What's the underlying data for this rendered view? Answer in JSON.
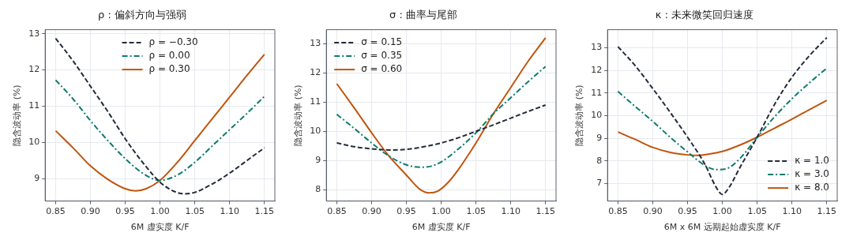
{
  "chart_data": [
    {
      "type": "line",
      "title": "ρ : 偏斜方向与强弱",
      "xlabel": "6M 虚实度 K/F",
      "ylabel": "隐含波动率 (%)",
      "xlim": [
        0.835,
        1.165
      ],
      "ylim": [
        8.38,
        13.11
      ],
      "xticks": [
        {
          "value": 0.85,
          "label": "0.85"
        },
        {
          "value": 0.9,
          "label": "0.90"
        },
        {
          "value": 0.95,
          "label": "0.95"
        },
        {
          "value": 1.0,
          "label": "1.00"
        },
        {
          "value": 1.05,
          "label": "1.05"
        },
        {
          "value": 1.1,
          "label": "1.10"
        },
        {
          "value": 1.15,
          "label": "1.15"
        }
      ],
      "yticks": [
        9,
        10,
        11,
        12,
        13
      ],
      "grid": true,
      "legend": "top center",
      "series": [
        {
          "name": "ρ = −0.30",
          "color": "#232b3a",
          "line_style": "dashed",
          "x": [
            0.85,
            0.875,
            0.9,
            0.925,
            0.95,
            0.975,
            1.0,
            1.02,
            1.035,
            1.05,
            1.075,
            1.1,
            1.125,
            1.15
          ],
          "values": [
            12.87,
            12.25,
            11.55,
            10.85,
            10.1,
            9.45,
            8.9,
            8.65,
            8.58,
            8.62,
            8.85,
            9.15,
            9.5,
            9.85
          ]
        },
        {
          "name": "ρ = 0.00",
          "color": "#0f7b6c",
          "line_style": "dashdot",
          "x": [
            0.85,
            0.875,
            0.9,
            0.925,
            0.95,
            0.975,
            1.0,
            1.025,
            1.05,
            1.075,
            1.1,
            1.125,
            1.15
          ],
          "values": [
            11.72,
            11.2,
            10.6,
            10.05,
            9.55,
            9.15,
            8.95,
            9.1,
            9.45,
            9.9,
            10.35,
            10.8,
            11.27
          ]
        },
        {
          "name": "ρ = 0.30",
          "color": "#c0550f",
          "line_style": "solid",
          "x": [
            0.85,
            0.875,
            0.9,
            0.925,
            0.95,
            0.965,
            0.98,
            1.0,
            1.025,
            1.05,
            1.075,
            1.1,
            1.125,
            1.15
          ],
          "values": [
            10.32,
            9.85,
            9.35,
            8.98,
            8.72,
            8.66,
            8.72,
            8.95,
            9.45,
            10.05,
            10.65,
            11.25,
            11.85,
            12.43
          ]
        }
      ]
    },
    {
      "type": "line",
      "title": "σ : 曲率与尾部",
      "xlabel": "6M 虚实度 K/F",
      "ylabel": "隐含波动率 (%)",
      "xlim": [
        0.835,
        1.165
      ],
      "ylim": [
        7.61,
        13.48
      ],
      "xticks": [
        {
          "value": 0.85,
          "label": "0.85"
        },
        {
          "value": 0.9,
          "label": "0.90"
        },
        {
          "value": 0.95,
          "label": "0.95"
        },
        {
          "value": 1.0,
          "label": "1.00"
        },
        {
          "value": 1.05,
          "label": "1.05"
        },
        {
          "value": 1.1,
          "label": "1.10"
        },
        {
          "value": 1.15,
          "label": "1.15"
        }
      ],
      "yticks": [
        8,
        9,
        10,
        11,
        12,
        13
      ],
      "grid": true,
      "legend": "top left",
      "series": [
        {
          "name": "σ = 0.15",
          "color": "#232b3a",
          "line_style": "dashed",
          "x": [
            0.85,
            0.875,
            0.9,
            0.925,
            0.95,
            0.975,
            1.0,
            1.025,
            1.05,
            1.075,
            1.1,
            1.125,
            1.15
          ],
          "values": [
            9.6,
            9.47,
            9.4,
            9.36,
            9.38,
            9.47,
            9.6,
            9.78,
            10.0,
            10.22,
            10.45,
            10.68,
            10.9
          ]
        },
        {
          "name": "σ = 0.35",
          "color": "#0f7b6c",
          "line_style": "dashdot",
          "x": [
            0.85,
            0.875,
            0.9,
            0.925,
            0.95,
            0.97,
            0.985,
            1.0,
            1.025,
            1.05,
            1.075,
            1.1,
            1.125,
            1.15
          ],
          "values": [
            10.58,
            10.1,
            9.6,
            9.15,
            8.85,
            8.77,
            8.8,
            8.95,
            9.4,
            9.95,
            10.6,
            11.15,
            11.7,
            12.22
          ]
        },
        {
          "name": "σ = 0.60",
          "color": "#c0550f",
          "line_style": "solid",
          "x": [
            0.85,
            0.875,
            0.9,
            0.925,
            0.95,
            0.97,
            0.983,
            0.995,
            1.01,
            1.025,
            1.05,
            1.075,
            1.1,
            1.125,
            1.15
          ],
          "values": [
            11.63,
            10.8,
            9.95,
            9.15,
            8.5,
            8.0,
            7.89,
            7.95,
            8.25,
            8.7,
            9.6,
            10.6,
            11.5,
            12.4,
            13.2
          ]
        }
      ]
    },
    {
      "type": "line",
      "title": "κ : 未来微笑回归速度",
      "xlabel": "6M x 6M 远期起始虚实度 K/F",
      "ylabel": "隐含波动率 (%)",
      "xlim": [
        0.835,
        1.165
      ],
      "ylim": [
        6.23,
        13.8
      ],
      "xticks": [
        {
          "value": 0.85,
          "label": "0.85"
        },
        {
          "value": 0.9,
          "label": "0.90"
        },
        {
          "value": 0.95,
          "label": "0.95"
        },
        {
          "value": 1.0,
          "label": "1.00"
        },
        {
          "value": 1.05,
          "label": "1.05"
        },
        {
          "value": 1.1,
          "label": "1.10"
        },
        {
          "value": 1.15,
          "label": "1.15"
        }
      ],
      "yticks": [
        7,
        8,
        9,
        10,
        11,
        12,
        13
      ],
      "grid": true,
      "legend": "bottom right",
      "series": [
        {
          "name": "κ = 1.0",
          "color": "#232b3a",
          "line_style": "dashed",
          "x": [
            0.85,
            0.875,
            0.9,
            0.925,
            0.95,
            0.975,
            0.99,
            1.0,
            1.01,
            1.025,
            1.05,
            1.075,
            1.1,
            1.125,
            1.15
          ],
          "values": [
            13.05,
            12.2,
            11.2,
            10.15,
            9.05,
            7.85,
            6.9,
            6.52,
            6.85,
            7.7,
            9.05,
            10.5,
            11.7,
            12.65,
            13.45
          ]
        },
        {
          "name": "κ = 3.0",
          "color": "#0f7b6c",
          "line_style": "dashdot",
          "x": [
            0.85,
            0.875,
            0.9,
            0.925,
            0.95,
            0.975,
            0.99,
            1.005,
            1.025,
            1.05,
            1.075,
            1.1,
            1.125,
            1.15
          ],
          "values": [
            11.07,
            10.4,
            9.75,
            9.05,
            8.4,
            7.8,
            7.62,
            7.65,
            8.1,
            9.05,
            9.95,
            10.75,
            11.45,
            12.1
          ]
        },
        {
          "name": "κ = 8.0",
          "color": "#c0550f",
          "line_style": "solid",
          "x": [
            0.85,
            0.875,
            0.9,
            0.925,
            0.95,
            0.965,
            0.98,
            1.0,
            1.025,
            1.05,
            1.075,
            1.1,
            1.125,
            1.15
          ],
          "values": [
            9.28,
            8.95,
            8.6,
            8.38,
            8.27,
            8.25,
            8.3,
            8.42,
            8.7,
            9.05,
            9.45,
            9.85,
            10.27,
            10.68
          ]
        }
      ]
    }
  ]
}
